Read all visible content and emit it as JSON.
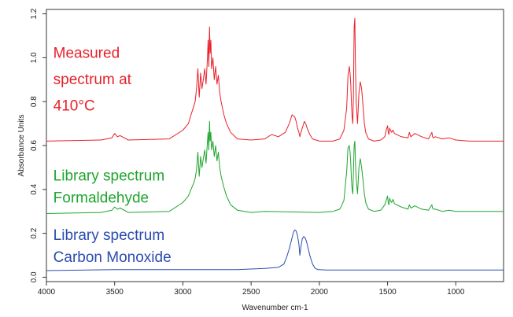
{
  "chart_data": {
    "type": "line",
    "xlabel": "Wavenumber cm-1",
    "ylabel": "Absorbance Units",
    "xlim": [
      4000,
      650
    ],
    "ylim": [
      -0.02,
      1.22
    ],
    "x_ticks": [
      4000,
      3500,
      3000,
      2500,
      2000,
      1500,
      1000
    ],
    "y_ticks": [
      0.0,
      0.2,
      0.4,
      0.6,
      0.8,
      1.0,
      1.2
    ],
    "y_tick_labels": [
      "0.0",
      "0.2",
      "0.4",
      "0.6",
      "0.8",
      "1.0",
      "1.2"
    ],
    "grid": false,
    "annotations": [
      {
        "lines": [
          "Measured",
          "spectrum at",
          "410°C"
        ],
        "color": "#e8202a",
        "x": 3950,
        "y": [
          1.0,
          0.88,
          0.76
        ]
      },
      {
        "lines": [
          "Library spectrum",
          "Formaldehyde"
        ],
        "color": "#1fa52f",
        "x": 3950,
        "y": [
          0.44,
          0.34
        ]
      },
      {
        "lines": [
          "Library spectrum",
          "Carbon Monoxide"
        ],
        "color": "#2c4bb0",
        "x": 3950,
        "y": [
          0.17,
          0.07
        ]
      }
    ],
    "series": [
      {
        "color": "#e8202a",
        "x": [
          4000,
          3600,
          3520,
          3500,
          3480,
          3460,
          3400,
          3100,
          3000,
          2960,
          2940,
          2920,
          2910,
          2900,
          2890,
          2880,
          2870,
          2860,
          2850,
          2840,
          2830,
          2820,
          2815,
          2810,
          2805,
          2800,
          2795,
          2790,
          2780,
          2770,
          2760,
          2750,
          2740,
          2730,
          2720,
          2700,
          2680,
          2650,
          2600,
          2500,
          2400,
          2350,
          2300,
          2250,
          2220,
          2200,
          2180,
          2170,
          2160,
          2150,
          2143,
          2135,
          2120,
          2110,
          2100,
          2090,
          2070,
          2050,
          2000,
          1900,
          1850,
          1820,
          1800,
          1790,
          1780,
          1775,
          1770,
          1765,
          1760,
          1755,
          1750,
          1745,
          1740,
          1735,
          1730,
          1720,
          1710,
          1700,
          1690,
          1680,
          1670,
          1660,
          1640,
          1600,
          1550,
          1520,
          1510,
          1500,
          1495,
          1490,
          1485,
          1480,
          1470,
          1460,
          1450,
          1400,
          1350,
          1340,
          1330,
          1300,
          1250,
          1200,
          1175,
          1170,
          1165,
          1150,
          1100,
          1050,
          1000,
          900,
          800,
          700,
          650
        ],
        "y": [
          0.62,
          0.625,
          0.635,
          0.655,
          0.64,
          0.645,
          0.625,
          0.63,
          0.67,
          0.7,
          0.74,
          0.78,
          0.8,
          0.86,
          0.95,
          0.82,
          0.93,
          0.86,
          0.9,
          0.95,
          0.88,
          1.0,
          1.08,
          0.96,
          1.14,
          1.02,
          1.08,
          0.95,
          1.0,
          0.9,
          0.96,
          0.88,
          0.92,
          0.84,
          0.8,
          0.74,
          0.7,
          0.66,
          0.63,
          0.625,
          0.63,
          0.65,
          0.64,
          0.66,
          0.7,
          0.74,
          0.73,
          0.71,
          0.68,
          0.66,
          0.64,
          0.66,
          0.69,
          0.71,
          0.7,
          0.68,
          0.65,
          0.63,
          0.62,
          0.62,
          0.63,
          0.67,
          0.77,
          0.92,
          0.96,
          0.93,
          0.88,
          0.8,
          0.73,
          0.7,
          0.83,
          1.14,
          1.18,
          0.95,
          0.8,
          0.7,
          0.84,
          0.89,
          0.86,
          0.78,
          0.7,
          0.66,
          0.63,
          0.62,
          0.625,
          0.64,
          0.67,
          0.69,
          0.66,
          0.65,
          0.68,
          0.67,
          0.66,
          0.67,
          0.655,
          0.64,
          0.635,
          0.66,
          0.64,
          0.655,
          0.64,
          0.63,
          0.66,
          0.64,
          0.635,
          0.64,
          0.63,
          0.635,
          0.625,
          0.62,
          0.62,
          0.62,
          0.62
        ]
      },
      {
        "color": "#1fa52f",
        "x": [
          4000,
          3600,
          3520,
          3500,
          3480,
          3460,
          3400,
          3100,
          3000,
          2960,
          2940,
          2920,
          2910,
          2900,
          2890,
          2880,
          2870,
          2860,
          2850,
          2840,
          2830,
          2820,
          2815,
          2810,
          2805,
          2800,
          2795,
          2790,
          2780,
          2770,
          2760,
          2750,
          2740,
          2730,
          2720,
          2700,
          2680,
          2650,
          2600,
          2500,
          2400,
          2000,
          1900,
          1850,
          1820,
          1800,
          1790,
          1780,
          1775,
          1770,
          1765,
          1760,
          1755,
          1750,
          1745,
          1740,
          1735,
          1730,
          1720,
          1710,
          1700,
          1690,
          1680,
          1670,
          1660,
          1640,
          1600,
          1550,
          1520,
          1510,
          1500,
          1495,
          1490,
          1485,
          1480,
          1470,
          1460,
          1450,
          1400,
          1350,
          1340,
          1330,
          1300,
          1250,
          1200,
          1175,
          1170,
          1165,
          1150,
          1100,
          1050,
          1000,
          900,
          800,
          700,
          650
        ],
        "y": [
          0.29,
          0.295,
          0.305,
          0.32,
          0.31,
          0.315,
          0.295,
          0.3,
          0.34,
          0.37,
          0.4,
          0.43,
          0.45,
          0.49,
          0.57,
          0.46,
          0.55,
          0.5,
          0.54,
          0.58,
          0.52,
          0.62,
          0.66,
          0.58,
          0.71,
          0.62,
          0.66,
          0.58,
          0.62,
          0.55,
          0.6,
          0.53,
          0.57,
          0.5,
          0.46,
          0.41,
          0.37,
          0.33,
          0.305,
          0.295,
          0.3,
          0.295,
          0.3,
          0.31,
          0.35,
          0.48,
          0.59,
          0.6,
          0.57,
          0.52,
          0.45,
          0.4,
          0.38,
          0.48,
          0.6,
          0.62,
          0.52,
          0.45,
          0.38,
          0.5,
          0.54,
          0.5,
          0.44,
          0.38,
          0.34,
          0.31,
          0.3,
          0.305,
          0.33,
          0.35,
          0.37,
          0.34,
          0.33,
          0.36,
          0.35,
          0.34,
          0.355,
          0.335,
          0.32,
          0.31,
          0.33,
          0.315,
          0.325,
          0.31,
          0.305,
          0.33,
          0.315,
          0.31,
          0.31,
          0.3,
          0.305,
          0.3,
          0.3,
          0.3,
          0.3,
          0.3
        ]
      },
      {
        "color": "#2c4bb0",
        "x": [
          4000,
          3500,
          3000,
          2600,
          2400,
          2300,
          2260,
          2240,
          2220,
          2200,
          2190,
          2180,
          2170,
          2160,
          2150,
          2143,
          2135,
          2125,
          2115,
          2105,
          2095,
          2085,
          2070,
          2050,
          2030,
          2010,
          2000,
          1950,
          1800,
          1500,
          1000,
          650
        ],
        "y": [
          0.03,
          0.035,
          0.035,
          0.035,
          0.04,
          0.045,
          0.06,
          0.09,
          0.13,
          0.18,
          0.205,
          0.215,
          0.21,
          0.19,
          0.15,
          0.1,
          0.14,
          0.175,
          0.185,
          0.18,
          0.165,
          0.14,
          0.1,
          0.06,
          0.04,
          0.035,
          0.035,
          0.033,
          0.033,
          0.033,
          0.033,
          0.033
        ]
      }
    ]
  }
}
